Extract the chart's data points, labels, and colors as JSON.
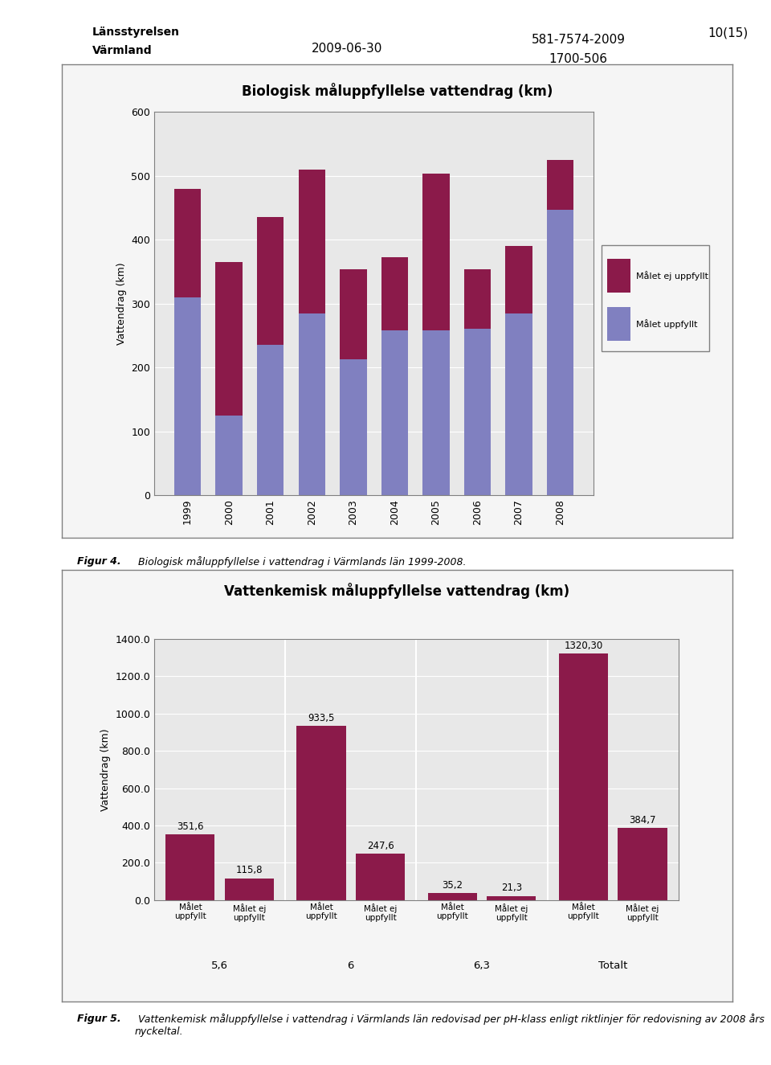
{
  "bio_title": "Biologisk måluppfyllelse vattendrag (km)",
  "bio_years": [
    "1999",
    "2000",
    "2001",
    "2002",
    "2003",
    "2004",
    "2005",
    "2006",
    "2007",
    "2008"
  ],
  "bio_uppfyllt": [
    310,
    125,
    235,
    285,
    213,
    258,
    258,
    260,
    285,
    447
  ],
  "bio_ej_uppfyllt": [
    170,
    240,
    200,
    225,
    140,
    115,
    245,
    93,
    105,
    78
  ],
  "bio_color_uppfyllt": "#8080c0",
  "bio_color_ej": "#8b1a4a",
  "bio_ylabel": "Vattendrag (km)",
  "bio_ylim": [
    0,
    600
  ],
  "bio_yticks": [
    0,
    100,
    200,
    300,
    400,
    500,
    600
  ],
  "bio_legend_uppfyllt": "Målet uppfyllt",
  "bio_legend_ej": "Målet ej uppfyllt",
  "vat_title": "Vattenkemisk måluppfyllelse vattendrag (km)",
  "vat_group_labels": [
    "5,6",
    "6",
    "6,3",
    "Totalt"
  ],
  "vat_uppfyllt": [
    351.6,
    933.5,
    35.2,
    1320.3
  ],
  "vat_ej_uppfyllt": [
    115.8,
    247.6,
    21.3,
    384.7
  ],
  "vat_bar_labels_upp": [
    "351,6",
    "933,5",
    "35,2",
    "1320,30"
  ],
  "vat_bar_labels_ej": [
    "115,8",
    "247,6",
    "21,3",
    "384,7"
  ],
  "vat_color": "#8b1a4a",
  "vat_ylabel": "Vattendrag (km)",
  "vat_ylim": [
    0,
    1400
  ],
  "vat_yticks": [
    0.0,
    200.0,
    400.0,
    600.0,
    800.0,
    1000.0,
    1200.0,
    1400.0
  ],
  "header_date": "2009-06-30",
  "header_ref1": "581-7574-2009",
  "header_ref2": "1700-506",
  "header_page": "10(15)",
  "fig4_caption_bold": "Figur 4.",
  "fig4_caption_rest": " Biologisk måluppfyllelse i vattendrag i Värmlands län 1999-2008.",
  "fig5_caption_bold": "Figur 5.",
  "fig5_caption_rest": " Vattenkemisk måluppfyllelse i vattendrag i Värmlands län redovisad per pH-klass enligt riktlinjer för redovisning av 2008 års nyckeltal.",
  "bg_color": "#ffffff",
  "border_color": "#808080",
  "chart_bg": "#e8e8e8"
}
